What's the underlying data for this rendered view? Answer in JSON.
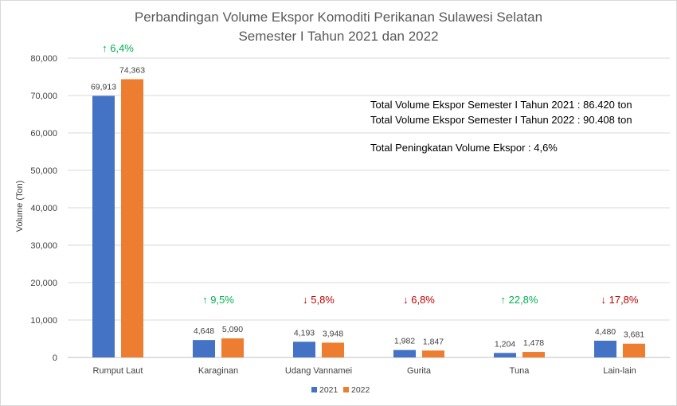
{
  "chart_data": {
    "type": "bar",
    "title": [
      "Perbandingan Volume Ekspor Komoditi Perikanan Sulawesi Selatan",
      "Semester I Tahun 2021 dan 2022"
    ],
    "ylabel": "Volume (Ton)",
    "xlabel": "",
    "ylim": [
      0,
      80000
    ],
    "yticks": [
      "0",
      "10,000",
      "20,000",
      "30,000",
      "40,000",
      "50,000",
      "60,000",
      "70,000",
      "80,000"
    ],
    "ytick_values": [
      0,
      10000,
      20000,
      30000,
      40000,
      50000,
      60000,
      70000,
      80000
    ],
    "grid": true,
    "legend": "bottom",
    "categories": [
      "Rumput Laut",
      "Karaginan",
      "Udang Vannamei",
      "Gurita",
      "Tuna",
      "Lain-lain"
    ],
    "series": [
      {
        "name": "2021",
        "color": "#4472c4",
        "values": [
          69913,
          4648,
          4193,
          1982,
          1204,
          4480
        ],
        "labels": [
          "69,913",
          "4,648",
          "4,193",
          "1,982",
          "1,204",
          "4,480"
        ]
      },
      {
        "name": "2022",
        "color": "#ed7d31",
        "values": [
          74363,
          5090,
          3948,
          1847,
          1478,
          3681
        ],
        "labels": [
          "74,363",
          "5,090",
          "3,948",
          "1,847",
          "1,478",
          "3,681"
        ]
      }
    ],
    "changes": [
      {
        "text": "↑ 6,4%",
        "direction": "up"
      },
      {
        "text": "↑ 9,5%",
        "direction": "up"
      },
      {
        "text": "↓ 5,8%",
        "direction": "down"
      },
      {
        "text": "↓ 6,8%",
        "direction": "down"
      },
      {
        "text": "↑ 22,8%",
        "direction": "up"
      },
      {
        "text": "↓ 17,8%",
        "direction": "down"
      }
    ],
    "change_colors": {
      "up": "#00b050",
      "down": "#c00000"
    },
    "annotations": [
      "Total Volume Ekspor Semester I Tahun 2021 : 86.420  ton",
      "Total Volume Ekspor Semester I Tahun 2022 : 90.408  ton",
      "Total Peningkatan Volume Ekspor : 4,6%"
    ]
  }
}
